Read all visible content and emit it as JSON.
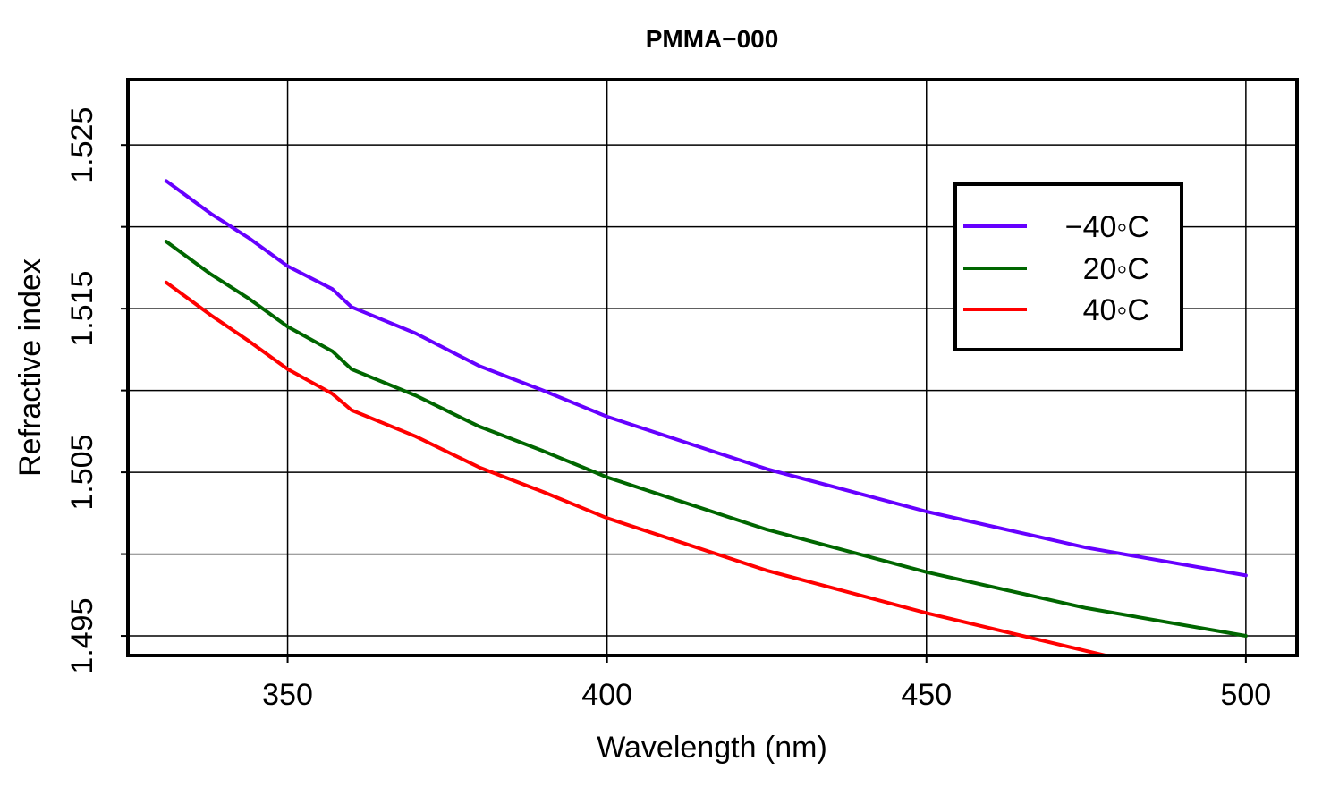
{
  "chart_data": {
    "type": "line",
    "title": "PMMA−000",
    "xlabel": "Wavelength (nm)",
    "ylabel": "Refractive index",
    "xlim": [
      325,
      508
    ],
    "ylim": [
      1.4938,
      1.529
    ],
    "xticks": [
      350,
      400,
      450,
      500
    ],
    "xtick_labels": [
      "350",
      "400",
      "450",
      "500"
    ],
    "yticks_labeled": [
      1.495,
      1.505,
      1.515,
      1.525
    ],
    "ytick_labels": [
      "1.495",
      "1.505",
      "1.515",
      "1.525"
    ],
    "ygrid": [
      1.495,
      1.5,
      1.505,
      1.51,
      1.515,
      1.52,
      1.525
    ],
    "grid": true,
    "legend_position": "top-right",
    "series": [
      {
        "name": "−40◦C",
        "color": "#6600ff",
        "x": [
          331,
          338,
          344,
          350,
          357,
          360,
          370,
          380,
          390,
          400,
          425,
          450,
          475,
          500
        ],
        "y": [
          1.5228,
          1.5208,
          1.5193,
          1.5176,
          1.5162,
          1.5151,
          1.5135,
          1.5115,
          1.51,
          1.5084,
          1.5052,
          1.5026,
          1.5004,
          1.4987
        ]
      },
      {
        "name": "20◦C",
        "color": "#006600",
        "x": [
          331,
          338,
          344,
          350,
          357,
          360,
          370,
          380,
          390,
          400,
          425,
          450,
          475,
          500
        ],
        "y": [
          1.5191,
          1.5171,
          1.5156,
          1.5139,
          1.5124,
          1.5113,
          1.5097,
          1.5078,
          1.5063,
          1.5047,
          1.5015,
          1.4989,
          1.4967,
          1.495
        ]
      },
      {
        "name": "40◦C",
        "color": "#ff0000",
        "x": [
          331,
          338,
          344,
          350,
          357,
          360,
          370,
          380,
          390,
          400,
          425,
          450,
          478
        ],
        "y": [
          1.5166,
          1.5146,
          1.513,
          1.5113,
          1.5098,
          1.5088,
          1.5072,
          1.5053,
          1.5038,
          1.5022,
          1.499,
          1.4964,
          1.4938
        ]
      }
    ]
  }
}
